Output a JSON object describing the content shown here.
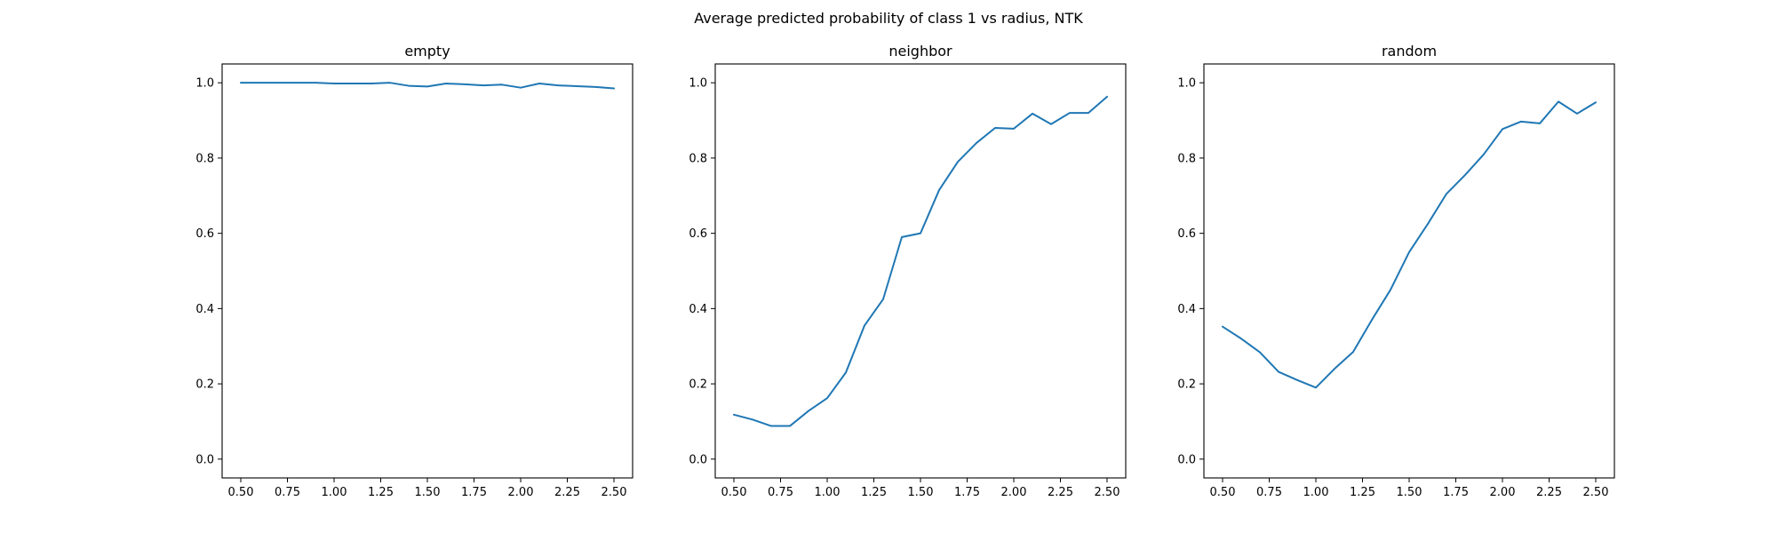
{
  "figure": {
    "title": "Average predicted probability of class 1 vs radius, NTK"
  },
  "chart_data": [
    {
      "type": "line",
      "title": "empty",
      "xlabel": "",
      "ylabel": "",
      "xlim": [
        0.4,
        2.6
      ],
      "ylim": [
        -0.05,
        1.05
      ],
      "grid": false,
      "color": "#1f77b4",
      "x_ticks": [
        "0.50",
        "0.75",
        "1.00",
        "1.25",
        "1.50",
        "1.75",
        "2.00",
        "2.25",
        "2.50"
      ],
      "y_ticks": [
        "0.0",
        "0.2",
        "0.4",
        "0.6",
        "0.8",
        "1.0"
      ],
      "x": [
        0.5,
        0.6,
        0.7,
        0.8,
        0.9,
        1.0,
        1.1,
        1.2,
        1.3,
        1.4,
        1.5,
        1.6,
        1.7,
        1.8,
        1.9,
        2.0,
        2.1,
        2.2,
        2.3,
        2.4,
        2.5
      ],
      "y": [
        1.0,
        1.0,
        1.0,
        1.0,
        1.0,
        0.998,
        0.998,
        0.998,
        1.0,
        0.992,
        0.99,
        0.998,
        0.996,
        0.993,
        0.995,
        0.987,
        0.998,
        0.993,
        0.991,
        0.989,
        0.985
      ]
    },
    {
      "type": "line",
      "title": "neighbor",
      "xlabel": "",
      "ylabel": "",
      "xlim": [
        0.4,
        2.6
      ],
      "ylim": [
        -0.05,
        1.05
      ],
      "grid": false,
      "color": "#1f77b4",
      "x_ticks": [
        "0.50",
        "0.75",
        "1.00",
        "1.25",
        "1.50",
        "1.75",
        "2.00",
        "2.25",
        "2.50"
      ],
      "y_ticks": [
        "0.0",
        "0.2",
        "0.4",
        "0.6",
        "0.8",
        "1.0"
      ],
      "x": [
        0.5,
        0.6,
        0.7,
        0.8,
        0.9,
        1.0,
        1.1,
        1.2,
        1.3,
        1.4,
        1.5,
        1.6,
        1.7,
        1.8,
        1.9,
        2.0,
        2.1,
        2.2,
        2.3,
        2.4,
        2.5
      ],
      "y": [
        0.118,
        0.105,
        0.088,
        0.088,
        0.128,
        0.162,
        0.23,
        0.355,
        0.425,
        0.59,
        0.6,
        0.715,
        0.79,
        0.84,
        0.88,
        0.878,
        0.918,
        0.89,
        0.92,
        0.92,
        0.963
      ]
    },
    {
      "type": "line",
      "title": "random",
      "xlabel": "",
      "ylabel": "",
      "xlim": [
        0.4,
        2.6
      ],
      "ylim": [
        -0.05,
        1.05
      ],
      "grid": false,
      "color": "#1f77b4",
      "x_ticks": [
        "0.50",
        "0.75",
        "1.00",
        "1.25",
        "1.50",
        "1.75",
        "2.00",
        "2.25",
        "2.50"
      ],
      "y_ticks": [
        "0.0",
        "0.2",
        "0.4",
        "0.6",
        "0.8",
        "1.0"
      ],
      "x": [
        0.5,
        0.6,
        0.7,
        0.8,
        0.9,
        1.0,
        1.1,
        1.2,
        1.3,
        1.4,
        1.5,
        1.6,
        1.7,
        1.8,
        1.9,
        2.0,
        2.1,
        2.2,
        2.3,
        2.4,
        2.5
      ],
      "y": [
        0.352,
        0.32,
        0.284,
        0.232,
        0.21,
        0.19,
        0.24,
        0.285,
        0.37,
        0.45,
        0.55,
        0.625,
        0.705,
        0.755,
        0.81,
        0.877,
        0.897,
        0.892,
        0.95,
        0.918,
        0.948
      ]
    }
  ]
}
